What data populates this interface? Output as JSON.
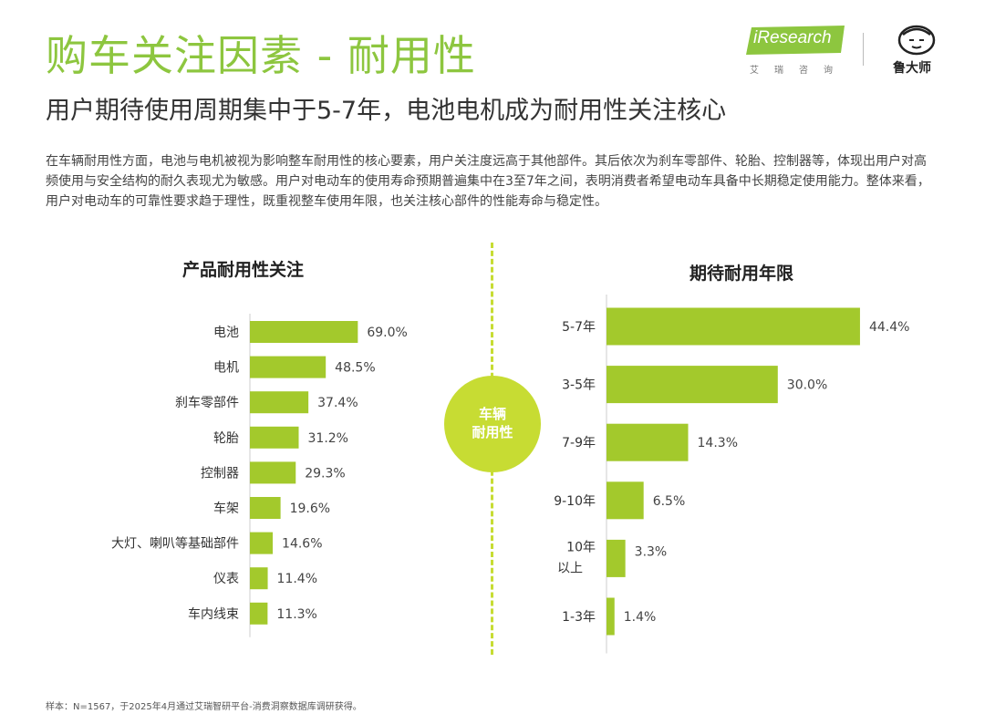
{
  "header": {
    "title": "购车关注因素 - 耐用性",
    "subtitle": "用户期待使用周期集中于5-7年，电池电机成为耐用性关注核心",
    "intro": "在车辆耐用性方面，电池与电机被视为影响整车耐用性的核心要素，用户关注度远高于其他部件。其后依次为刹车零部件、轮胎、控制器等，体现出用户对高频使用与安全结构的耐久表现尤为敏感。用户对电动车的使用寿命预期普遍集中在3至7年之间，表明消费者希望电动车具备中长期稳定使用能力。整体来看，用户对电动车的可靠性要求趋于理性，既重视整车使用年限，也关注核心部件的性能寿命与稳定性。"
  },
  "logos": {
    "iresearch_text": "iResearch",
    "iresearch_sub": "艾瑞咨询",
    "ludashi_text": "鲁大师"
  },
  "center_badge": {
    "line1": "车辆",
    "line2": "耐用性"
  },
  "colors": {
    "accent": "#8dc63f",
    "bar": "#a3c92c",
    "badge": "#c7dc33",
    "axis": "#cccccc"
  },
  "chart_data": [
    {
      "type": "bar",
      "orientation": "horizontal",
      "title": "产品耐用性关注",
      "categories": [
        "电池",
        "电机",
        "刹车零部件",
        "轮胎",
        "控制器",
        "车架",
        "大灯、喇叭等基础部件",
        "仪表",
        "车内线束"
      ],
      "values": [
        69.0,
        48.5,
        37.4,
        31.2,
        29.3,
        19.6,
        14.6,
        11.4,
        11.3
      ],
      "value_labels": [
        "69.0%",
        "48.5%",
        "37.4%",
        "31.2%",
        "29.3%",
        "19.6%",
        "14.6%",
        "11.4%",
        "11.3%"
      ],
      "unit": "%",
      "xlim": [
        0,
        100
      ],
      "grid": false
    },
    {
      "type": "bar",
      "orientation": "horizontal",
      "title": "期待耐用年限",
      "categories": [
        "5-7年",
        "3-5年",
        "7-9年",
        "9-10年",
        "10年以上",
        "1-3年"
      ],
      "values": [
        44.4,
        30.0,
        14.3,
        6.5,
        3.3,
        1.4
      ],
      "value_labels": [
        "44.4%",
        "30.0%",
        "14.3%",
        "6.5%",
        "3.3%",
        "1.4%"
      ],
      "unit": "%",
      "xlim": [
        0,
        50
      ],
      "grid": false
    }
  ],
  "footer": {
    "source": "样本：N=1567，于2025年4月通过艾瑞智研平台-消费洞察数据库调研获得。"
  }
}
